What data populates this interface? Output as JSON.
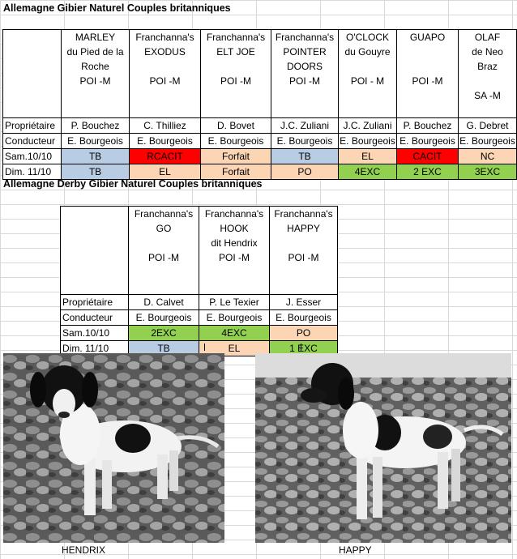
{
  "section1": {
    "title": "Allemagne  Gibier Naturel Couples britanniques",
    "dogs": [
      {
        "lines": [
          "MARLEY",
          "du Pied de la",
          "Roche",
          "POI -M",
          "",
          ""
        ],
        "proprietaire": "P. Bouchez",
        "conducteur": "E. Bourgeois",
        "sam": {
          "text": "TB",
          "color": "blue"
        },
        "dim": {
          "text": "TB",
          "color": "blue"
        }
      },
      {
        "lines": [
          "Franchanna's",
          "EXODUS",
          "",
          "POI -M",
          "",
          ""
        ],
        "proprietaire": "C. Thilliez",
        "conducteur": "E. Bourgeois",
        "sam": {
          "text": "RCACIT",
          "color": "red"
        },
        "dim": {
          "text": "EL",
          "color": "peach"
        }
      },
      {
        "lines": [
          "Franchanna's",
          "ELT JOE",
          "",
          "POI -M",
          "",
          ""
        ],
        "proprietaire": "D. Bovet",
        "conducteur": "E. Bourgeois",
        "sam": {
          "text": "Forfait",
          "color": "peach"
        },
        "dim": {
          "text": "Forfait",
          "color": "peach"
        }
      },
      {
        "lines": [
          "Franchanna's",
          "POINTER",
          "DOORS",
          "POI -M",
          "",
          ""
        ],
        "proprietaire": "J.C. Zuliani",
        "conducteur": "E. Bourgeois",
        "sam": {
          "text": "TB",
          "color": "blue"
        },
        "dim": {
          "text": "PO",
          "color": "peach"
        }
      },
      {
        "lines": [
          "O'CLOCK",
          "du  Gouyre",
          "",
          "POI - M",
          "",
          ""
        ],
        "proprietaire": "J.C. Zuliani",
        "conducteur": "E. Bourgeois",
        "sam": {
          "text": "EL",
          "color": "peach"
        },
        "dim": {
          "text": "4EXC",
          "color": "green"
        }
      },
      {
        "lines": [
          "GUAPO",
          "",
          "",
          "POI -M",
          "",
          ""
        ],
        "proprietaire": "P. Bouchez",
        "conducteur": "E. Bourgeois",
        "sam": {
          "text": "CACIT",
          "color": "red"
        },
        "dim": {
          "text": "2 EXC",
          "color": "green"
        }
      },
      {
        "lines": [
          "OLAF",
          "de Neo",
          "Braz",
          "",
          "SA -M",
          ""
        ],
        "proprietaire": "G. Debret",
        "conducteur": "E. Bourgeois",
        "sam": {
          "text": "NC",
          "color": "peach"
        },
        "dim": {
          "text": "3EXC",
          "color": "green"
        }
      }
    ]
  },
  "section2": {
    "title": "Allemagne Derby  Gibier Naturel Couples britanniques",
    "dogs": [
      {
        "lines": [
          "Franchanna's",
          "GO",
          "",
          "POI -M",
          "",
          ""
        ],
        "proprietaire": "D. Calvet",
        "conducteur": "E. Bourgeois",
        "sam": {
          "text": "2EXC",
          "color": "green"
        },
        "dim": {
          "text": "TB",
          "color": "blue"
        }
      },
      {
        "lines": [
          "Franchanna's",
          "HOOK",
          "dit Hendrix",
          "POI -M",
          "",
          ""
        ],
        "proprietaire": "P. Le Texier",
        "conducteur": "E. Bourgeois",
        "sam": {
          "text": "4EXC",
          "color": "green"
        },
        "dim": {
          "text": "EL",
          "color": "peach"
        }
      },
      {
        "lines": [
          "Franchanna's",
          "HAPPY",
          "",
          "POI -M",
          "",
          ""
        ],
        "proprietaire": "J. Esser",
        "conducteur": "E. Bourgeois",
        "sam": {
          "text": "PO",
          "color": "peach"
        },
        "dim": {
          "text": "1 EXC",
          "color": "green"
        }
      }
    ]
  },
  "labels": {
    "proprietaire": "Propriétaire",
    "conducteur": "Conducteur",
    "sam": "Sam.10/10",
    "dim": "Dim. 11/10"
  },
  "photos": [
    {
      "caption": "HENDRIX",
      "icon": "dog-photo-hendrix"
    },
    {
      "caption": "HAPPY",
      "icon": "dog-photo-happy"
    }
  ],
  "colors": {
    "blue": "#b8cce4",
    "red": "#ff0000",
    "peach": "#fcd5b4",
    "green": "#92d050"
  }
}
